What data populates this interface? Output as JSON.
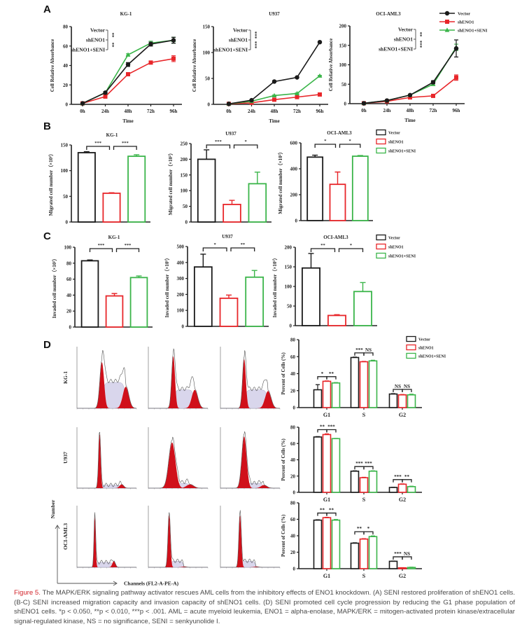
{
  "panel_labels": [
    "A",
    "B",
    "C",
    "D"
  ],
  "colors": {
    "Vector": "#1a1a1a",
    "shENO1": "#e8262a",
    "shENO1+SENI": "#3bb54a",
    "s_phase_fill": "#d9d6ec",
    "g_peak_fill": "#d0101a"
  },
  "legend": [
    "Vector",
    "shENO1",
    "shENO1+SENI"
  ],
  "chart_data": [
    {
      "id": "A-KG-1",
      "type": "line",
      "title": "KG-1",
      "xlabel": "Time",
      "ylabel": "Cell Relative Absorbance",
      "categories": [
        "0h",
        "24h",
        "48h",
        "72h",
        "96h"
      ],
      "ylim": [
        0,
        80
      ],
      "yticks": [
        "0",
        "20",
        "40",
        "60",
        "80"
      ],
      "series": [
        {
          "name": "Vector",
          "values": [
            1,
            12,
            41,
            62,
            66
          ],
          "err": [
            0,
            1,
            2,
            2,
            3
          ]
        },
        {
          "name": "shENO1",
          "values": [
            1,
            8,
            31,
            43,
            47
          ],
          "err": [
            0,
            1,
            1,
            1,
            3
          ]
        },
        {
          "name": "shENO1+SENI",
          "values": [
            1,
            12,
            51,
            63,
            66
          ],
          "err": [
            0,
            1,
            1,
            2,
            3
          ]
        }
      ],
      "sig_labels": [
        "Vector",
        "shENO1",
        "shENO1+SENI"
      ],
      "sig": [
        "**",
        "**"
      ]
    },
    {
      "id": "A-U937",
      "type": "line",
      "title": "U937",
      "xlabel": "Time",
      "ylabel": "Cell Relative Absorbance",
      "categories": [
        "0h",
        "24h",
        "48h",
        "72h",
        "96h"
      ],
      "ylim": [
        0,
        150
      ],
      "yticks": [
        "0",
        "50",
        "100",
        "150"
      ],
      "series": [
        {
          "name": "Vector",
          "values": [
            1,
            8,
            44,
            52,
            120
          ],
          "err": [
            0,
            0,
            1,
            1,
            1
          ]
        },
        {
          "name": "shENO1",
          "values": [
            1,
            3,
            9,
            14,
            19
          ],
          "err": [
            0,
            0,
            1,
            1,
            1
          ]
        },
        {
          "name": "shENO1+SENI",
          "values": [
            1,
            6,
            17,
            21,
            55
          ],
          "err": [
            0,
            0,
            1,
            1,
            1
          ]
        }
      ],
      "sig_labels": [
        "Vector",
        "shENO1",
        "shENO1+SENI"
      ],
      "sig": [
        "***",
        "***"
      ]
    },
    {
      "id": "A-OCI-AML3",
      "type": "line",
      "title": "OCI-AML3",
      "xlabel": "Time",
      "ylabel": "Cell Relative Absorbance",
      "categories": [
        "0h",
        "24h",
        "48h",
        "72h",
        "96h"
      ],
      "ylim": [
        0,
        200
      ],
      "yticks": [
        "0",
        "50",
        "100",
        "150",
        "200"
      ],
      "series": [
        {
          "name": "Vector",
          "values": [
            1,
            8,
            22,
            55,
            142
          ],
          "err": [
            0,
            1,
            1,
            4,
            22
          ]
        },
        {
          "name": "shENO1",
          "values": [
            1,
            6,
            16,
            20,
            67
          ],
          "err": [
            0,
            1,
            1,
            2,
            7
          ]
        },
        {
          "name": "shENO1+SENI",
          "values": [
            1,
            8,
            22,
            50,
            145
          ],
          "err": [
            0,
            1,
            1,
            3,
            8
          ]
        }
      ],
      "sig_labels": [
        "Vector",
        "shENO1",
        "shENO1+SENI"
      ],
      "sig": [
        "**",
        "***"
      ],
      "legend": "top-right"
    },
    {
      "id": "B-KG-1",
      "type": "bar",
      "title": "KG-1",
      "ylabel": "Migrated cell number（×10²）",
      "categories": [
        "Vector",
        "shENO1",
        "shENO1+SENI"
      ],
      "values": [
        135,
        56,
        128
      ],
      "err": [
        2,
        1,
        3
      ],
      "ylim": [
        0,
        150
      ],
      "yticks": [
        "0",
        "50",
        "100",
        "150"
      ],
      "sig": [
        "***",
        "***"
      ]
    },
    {
      "id": "B-U937",
      "type": "bar",
      "title": "U937",
      "ylabel": "Migrated cell number（×10²）",
      "categories": [
        "Vector",
        "shENO1",
        "shENO1+SENI"
      ],
      "values": [
        200,
        56,
        122
      ],
      "err": [
        30,
        13,
        37
      ],
      "ylim": [
        0,
        250
      ],
      "yticks": [
        "0",
        "50",
        "100",
        "150",
        "200",
        "250"
      ],
      "sig": [
        "***",
        "*"
      ]
    },
    {
      "id": "B-OCI-AML3",
      "type": "bar",
      "title": "OCI-AML3",
      "ylabel": "Migrated cell number（×10²）",
      "categories": [
        "Vector",
        "shENO1",
        "shENO1+SENI"
      ],
      "values": [
        490,
        280,
        497
      ],
      "err": [
        15,
        95,
        5
      ],
      "ylim": [
        0,
        600
      ],
      "yticks": [
        "0",
        "200",
        "400",
        "600"
      ],
      "sig": [
        "*",
        "*"
      ],
      "legend": "top-right"
    },
    {
      "id": "C-KG-1",
      "type": "bar",
      "title": "KG-1",
      "ylabel": "Invaded cell number（×10²）",
      "categories": [
        "Vector",
        "shENO1",
        "shENO1+SENI"
      ],
      "values": [
        83,
        39,
        62
      ],
      "err": [
        1,
        3,
        2
      ],
      "ylim": [
        0,
        100
      ],
      "yticks": [
        "0",
        "20",
        "40",
        "60",
        "80",
        "100"
      ],
      "sig": [
        "***",
        "***"
      ]
    },
    {
      "id": "C-U937",
      "type": "bar",
      "title": "U937",
      "ylabel": "Invaded cell number（×10²）",
      "categories": [
        "Vector",
        "shENO1",
        "shENO1+SENI"
      ],
      "values": [
        372,
        176,
        308
      ],
      "err": [
        80,
        20,
        42
      ],
      "ylim": [
        0,
        500
      ],
      "yticks": [
        "0",
        "100",
        "200",
        "300",
        "400",
        "500"
      ],
      "sig": [
        "*",
        "**"
      ]
    },
    {
      "id": "C-OCI-AML3",
      "type": "bar",
      "title": "OCI-AML3",
      "ylabel": "Invaded cell number（×10²）",
      "categories": [
        "Vector",
        "shENO1",
        "shENO1+SENI"
      ],
      "values": [
        147,
        26,
        87
      ],
      "err": [
        37,
        2,
        23
      ],
      "ylim": [
        0,
        200
      ],
      "yticks": [
        "0",
        "50",
        "100",
        "150",
        "200"
      ],
      "sig": [
        "**",
        "*"
      ],
      "legend": "top-right"
    },
    {
      "id": "D-KG-1",
      "type": "grouped-bar",
      "ylabel": "Percent of Cells (%)",
      "categories": [
        "G1",
        "S",
        "G2"
      ],
      "ylim": [
        0,
        80
      ],
      "yticks": [
        "0",
        "20",
        "40",
        "60",
        "80"
      ],
      "series": [
        {
          "name": "Vector",
          "values": [
            21,
            59,
            16
          ],
          "err": [
            6,
            0.5,
            0.5
          ]
        },
        {
          "name": "shENO1",
          "values": [
            31,
            54,
            15
          ],
          "err": [
            0.5,
            0.5,
            0.5
          ]
        },
        {
          "name": "shENO1+SENI",
          "values": [
            29,
            55,
            15
          ],
          "err": [
            0.5,
            0.8,
            0.8
          ]
        }
      ],
      "sig": [
        [
          "*",
          "**"
        ],
        [
          "***",
          "NS"
        ],
        [
          "NS",
          "NS"
        ]
      ],
      "legend": "top-right"
    },
    {
      "id": "D-U937",
      "type": "grouped-bar",
      "ylabel": "Percent of Cells (%)",
      "categories": [
        "G1",
        "S",
        "G2"
      ],
      "ylim": [
        0,
        80
      ],
      "yticks": [
        "0",
        "20",
        "40",
        "60",
        "80"
      ],
      "series": [
        {
          "name": "Vector",
          "values": [
            68,
            26,
            6
          ],
          "err": [
            0.5,
            0.5,
            0.3
          ]
        },
        {
          "name": "shENO1",
          "values": [
            71,
            18,
            10
          ],
          "err": [
            0.8,
            0.5,
            0.5
          ]
        },
        {
          "name": "shENO1+SENI",
          "values": [
            66,
            26,
            7
          ],
          "err": [
            0.3,
            0.5,
            0.5
          ]
        }
      ],
      "sig": [
        [
          "**",
          "***"
        ],
        [
          "***",
          "***"
        ],
        [
          "***",
          "**"
        ]
      ]
    },
    {
      "id": "D-OCI-AML3",
      "type": "grouped-bar",
      "ylabel": "Percent of Cells (%)",
      "categories": [
        "G1",
        "S",
        "G2"
      ],
      "ylim": [
        0,
        80
      ],
      "yticks": [
        "0",
        "20",
        "40",
        "60",
        "80"
      ],
      "series": [
        {
          "name": "Vector",
          "values": [
            59,
            31,
            9
          ],
          "err": [
            0.5,
            0.5,
            0.3
          ]
        },
        {
          "name": "shENO1",
          "values": [
            62,
            36,
            1
          ],
          "err": [
            0.5,
            0.5,
            0.3
          ]
        },
        {
          "name": "shENO1+SENI",
          "values": [
            59,
            39,
            1.5
          ],
          "err": [
            0.8,
            0.8,
            0.3
          ]
        }
      ],
      "sig": [
        [
          "**",
          "**"
        ],
        [
          "**",
          "*"
        ],
        [
          "***",
          "NS"
        ]
      ]
    }
  ],
  "histograms": {
    "row_labels": [
      "KG-1",
      "U937",
      "OCI-AML3"
    ],
    "y_axis_label": "Number",
    "x_axis_label": "Channels (FL2-A-PE-A)"
  },
  "caption": {
    "figure_number": "Figure 5.",
    "text": " The MAPK/ERK signaling pathway activator rescues AML cells from the inhibitory effects of ENO1 knockdown. (A) SENI restored proliferation of shENO1 cells. (B-C) SENI increased migration capacity and invasion capacity of shENO1 cells. (D) SENI promoted cell cycle progression by reducing the G1 phase population of shENO1 cells. *p < 0.050, **p < 0.010, ***p < .001. AML = acute myeloid leukemia, ENO1 = alpha-enolase, MAPK/ERK = mitogen-activated protein kinase/extracellular signal-regulated kinase, NS = no significance, SENI = senkyunolide I."
  }
}
